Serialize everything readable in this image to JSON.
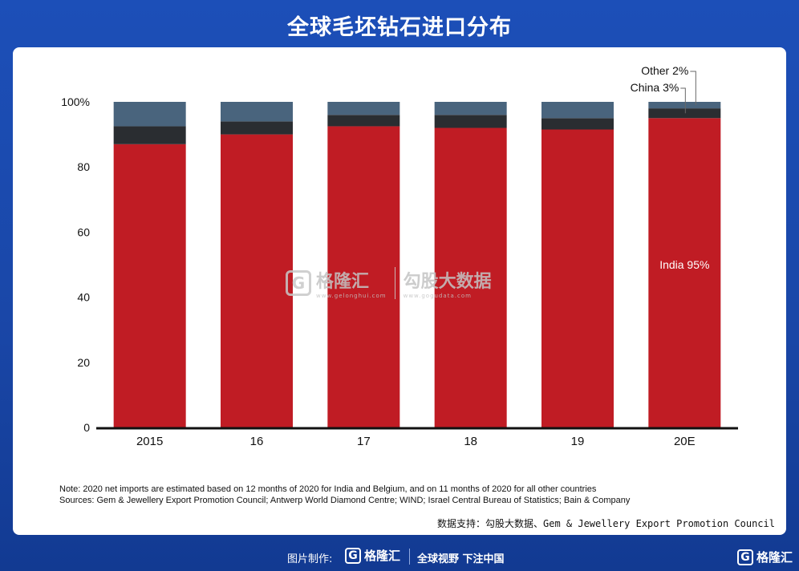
{
  "title": "全球毛坯钻石进口分布",
  "chart_data": {
    "type": "bar",
    "stacked": true,
    "categories": [
      "2015",
      "16",
      "17",
      "18",
      "19",
      "20E"
    ],
    "series": [
      {
        "name": "India",
        "color": "#c01c24",
        "values": [
          87,
          90,
          92.5,
          92,
          91.5,
          95
        ]
      },
      {
        "name": "China",
        "color": "#2a2d31",
        "values": [
          5.5,
          4,
          3.5,
          4,
          3.5,
          3
        ]
      },
      {
        "name": "Other",
        "color": "#49647d",
        "values": [
          7.5,
          6,
          4,
          4,
          5,
          2
        ]
      }
    ],
    "ylim": [
      0,
      100
    ],
    "yticks": [
      "0",
      "20",
      "40",
      "60",
      "80",
      "100%"
    ],
    "annotations": {
      "india": "India 95%",
      "china": "China 3%",
      "other": "Other 2%"
    },
    "xlabel": "",
    "ylabel": "",
    "grid": false
  },
  "note_line1": "Note: 2020 net imports are estimated based on 12 months of 2020 for India and Belgium, and on 11 months of 2020 for all other countries",
  "note_line2": "Sources: Gem & Jewellery Export Promotion Council; Antwerp World Diamond Centre; WIND; Israel Central Bureau of Statistics; Bain & Company",
  "support": "数据支持：勾股大数据、Gem & Jewellery Export Promotion Council",
  "watermark": {
    "brand": "格隆汇",
    "brand_url": "www.gelonghui.com",
    "data": "勾股大数据",
    "data_url": "www.gogudata.com"
  },
  "footer": {
    "credit": "图片制作:",
    "brand": "格隆汇",
    "slogan": "全球视野 下注中国",
    "corner_brand": "格隆汇"
  },
  "colors": {
    "background": "#1c4fb8",
    "india": "#c01c24",
    "china": "#2a2d31",
    "other": "#49647d"
  }
}
